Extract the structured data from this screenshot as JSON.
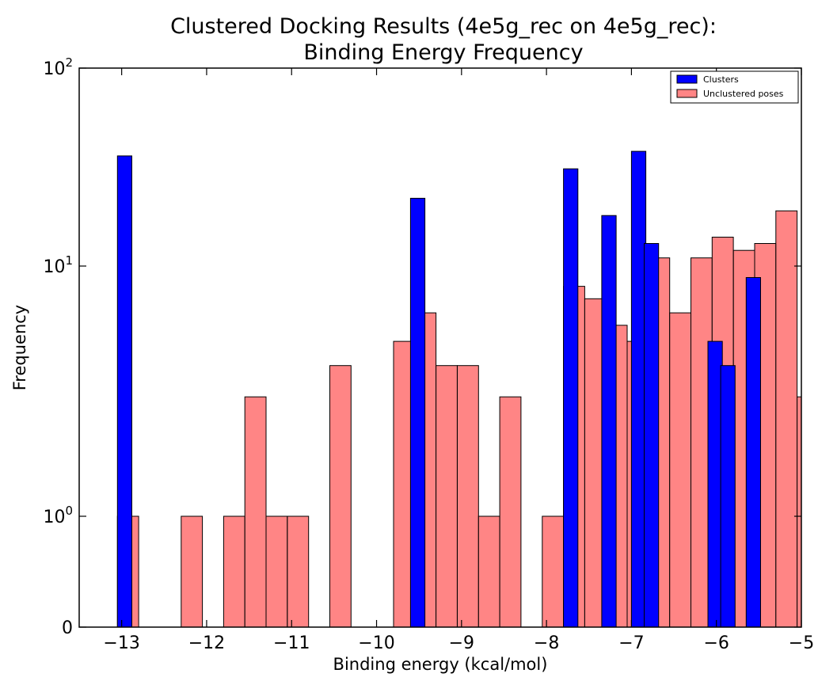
{
  "chart_data": {
    "type": "bar",
    "title_lines": [
      "Clustered Docking Results (4e5g_rec on 4e5g_rec):",
      "Binding Energy Frequency"
    ],
    "xlabel": "Binding energy (kcal/mol)",
    "ylabel": "Frequency",
    "xlim": [
      -13.5,
      -5.0
    ],
    "y_scale": "symlog",
    "x_ticks": [
      "−13",
      "−12",
      "−11",
      "−10",
      "−9",
      "−8",
      "−7",
      "−6",
      "−5"
    ],
    "x_tick_values": [
      -13,
      -12,
      -11,
      -10,
      -9,
      -8,
      -7,
      -6,
      -5
    ],
    "y_ticks": [
      {
        "value": 0,
        "base": "0",
        "exp": ""
      },
      {
        "value": 1,
        "base": "10",
        "exp": "0"
      },
      {
        "value": 10,
        "base": "10",
        "exp": "1"
      },
      {
        "value": 100,
        "base": "10",
        "exp": "2"
      }
    ],
    "legend": {
      "position": "top-right",
      "entries": [
        "Clusters",
        "Unclustered poses"
      ]
    },
    "series": [
      {
        "name": "Clusters",
        "color": "#0000ff",
        "bin_width": 0.17,
        "bins": [
          {
            "x0": -13.05,
            "value": 36
          },
          {
            "x0": -9.6,
            "value": 22
          },
          {
            "x0": -7.8,
            "value": 31
          },
          {
            "x0": -7.35,
            "value": 18
          },
          {
            "x0": -7.0,
            "value": 38
          },
          {
            "x0": -6.85,
            "value": 13
          },
          {
            "x0": -6.1,
            "value": 5
          },
          {
            "x0": -5.95,
            "value": 4
          },
          {
            "x0": -5.65,
            "value": 9
          }
        ]
      },
      {
        "name": "Unclustered poses",
        "color": "#ff6666",
        "bin_width": 0.25,
        "bins": [
          {
            "x0": -13.05,
            "value": 1
          },
          {
            "x0": -12.3,
            "value": 1
          },
          {
            "x0": -11.8,
            "value": 1
          },
          {
            "x0": -11.55,
            "value": 3
          },
          {
            "x0": -11.3,
            "value": 1
          },
          {
            "x0": -11.05,
            "value": 1
          },
          {
            "x0": -10.55,
            "value": 4
          },
          {
            "x0": -9.8,
            "value": 5
          },
          {
            "x0": -9.55,
            "value": 6.5
          },
          {
            "x0": -9.3,
            "value": 4
          },
          {
            "x0": -9.05,
            "value": 4
          },
          {
            "x0": -8.8,
            "value": 1
          },
          {
            "x0": -8.55,
            "value": 3
          },
          {
            "x0": -8.05,
            "value": 1
          },
          {
            "x0": -7.8,
            "value": 8.3
          },
          {
            "x0": -7.55,
            "value": 7.4
          },
          {
            "x0": -7.3,
            "value": 5.8
          },
          {
            "x0": -7.05,
            "value": 5
          },
          {
            "x0": -6.8,
            "value": 11
          },
          {
            "x0": -6.55,
            "value": 6.5
          },
          {
            "x0": -6.3,
            "value": 11
          },
          {
            "x0": -6.05,
            "value": 14
          },
          {
            "x0": -5.8,
            "value": 12
          },
          {
            "x0": -5.55,
            "value": 13
          },
          {
            "x0": -5.3,
            "value": 19
          },
          {
            "x0": -5.05,
            "value": 3
          }
        ]
      }
    ]
  }
}
